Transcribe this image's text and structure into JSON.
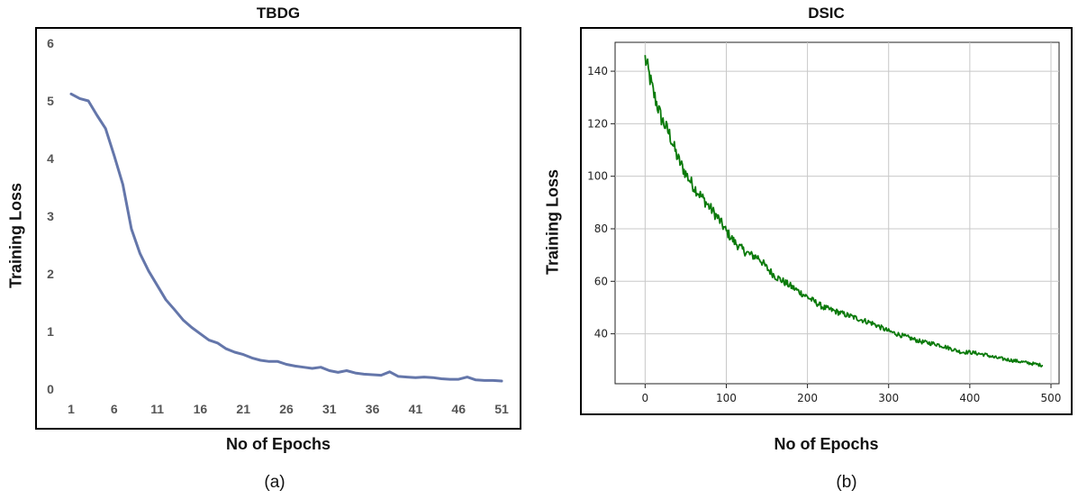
{
  "chart_data": [
    {
      "type": "line",
      "title": "TBDG",
      "xlabel": "No of Epochs",
      "ylabel": "Training Loss",
      "caption": "(a)",
      "xlim": [
        1,
        51
      ],
      "ylim": [
        0,
        6
      ],
      "x_ticks": [
        1,
        6,
        11,
        16,
        21,
        26,
        31,
        36,
        41,
        46,
        51
      ],
      "y_ticks": [
        0,
        1,
        2,
        3,
        4,
        5,
        6
      ],
      "grid": false,
      "color": "#6476aa",
      "series": [
        {
          "x": [
            1,
            2,
            3,
            4,
            5,
            6,
            7,
            8,
            9,
            10,
            11,
            12,
            13,
            14,
            15,
            16,
            17,
            18,
            19,
            20,
            21,
            22,
            23,
            24,
            25,
            26,
            27,
            28,
            29,
            30,
            31,
            32,
            33,
            34,
            35,
            36,
            37,
            38,
            39,
            40,
            41,
            42,
            43,
            44,
            45,
            46,
            47,
            48,
            49,
            50,
            51
          ],
          "values": [
            5.12,
            5.04,
            5.0,
            4.75,
            4.52,
            4.05,
            3.55,
            2.78,
            2.35,
            2.05,
            1.8,
            1.55,
            1.38,
            1.2,
            1.07,
            0.96,
            0.85,
            0.8,
            0.7,
            0.64,
            0.6,
            0.54,
            0.5,
            0.48,
            0.48,
            0.43,
            0.4,
            0.38,
            0.36,
            0.38,
            0.32,
            0.29,
            0.32,
            0.28,
            0.26,
            0.25,
            0.24,
            0.3,
            0.22,
            0.21,
            0.2,
            0.21,
            0.2,
            0.18,
            0.17,
            0.17,
            0.21,
            0.16,
            0.15,
            0.15,
            0.14
          ]
        }
      ]
    },
    {
      "type": "line",
      "title": "DSIC",
      "xlabel": "No of Epochs",
      "ylabel": "Training Loss",
      "caption": "(b)",
      "xlim": [
        -37,
        510
      ],
      "ylim": [
        21,
        151
      ],
      "x_ticks": [
        0,
        100,
        200,
        300,
        400,
        500
      ],
      "y_ticks": [
        40,
        60,
        80,
        100,
        120,
        140
      ],
      "grid": true,
      "color": "#0a7a0a",
      "series": [
        {
          "x": [
            0,
            10,
            20,
            30,
            40,
            50,
            60,
            70,
            80,
            90,
            100,
            110,
            120,
            130,
            140,
            150,
            160,
            170,
            180,
            190,
            200,
            210,
            220,
            230,
            240,
            250,
            260,
            270,
            280,
            290,
            300,
            310,
            320,
            330,
            340,
            350,
            360,
            370,
            380,
            390,
            400,
            410,
            420,
            430,
            440,
            450,
            460,
            470,
            480,
            490
          ],
          "values": [
            145,
            132,
            122,
            116,
            107,
            101,
            96,
            92,
            88,
            84,
            79,
            75,
            72,
            70,
            69,
            65,
            62,
            60,
            58,
            56,
            54,
            52,
            50,
            49,
            48,
            47,
            46,
            45,
            44,
            42.5,
            41,
            40,
            39,
            38,
            37,
            36.5,
            36,
            35,
            34,
            33,
            33,
            32.5,
            32,
            31,
            30.5,
            30,
            29.5,
            29,
            28.5,
            28
          ]
        }
      ]
    }
  ]
}
